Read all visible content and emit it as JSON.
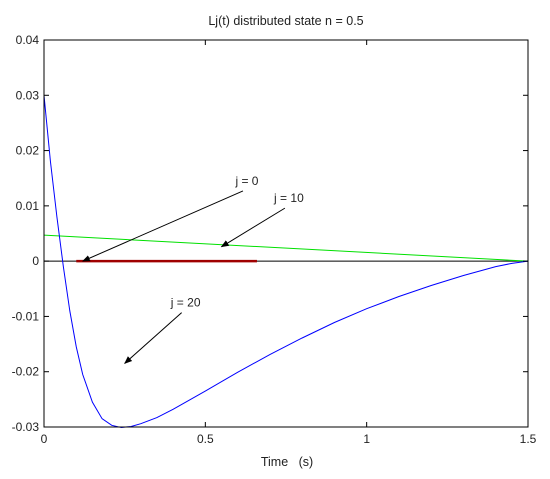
{
  "chart_data": {
    "type": "line",
    "title": "Lj(t) distributed state   n = 0.5",
    "xlabel": "Time   (s)",
    "ylabel": "",
    "xlim": [
      0,
      1.5
    ],
    "ylim": [
      -0.03,
      0.04
    ],
    "xticks": [
      0,
      0.5,
      1,
      1.5
    ],
    "xtick_labels": [
      "0",
      "0.5",
      "1",
      "1.5"
    ],
    "yticks": [
      -0.03,
      -0.02,
      -0.01,
      0,
      0.01,
      0.02,
      0.03,
      0.04
    ],
    "ytick_labels": [
      "-0.03",
      "-0.02",
      "-0.01",
      "0",
      "0.01",
      "0.02",
      "0.03",
      "0.04"
    ],
    "grid": false,
    "legend": "none",
    "series": [
      {
        "color": "#000000",
        "x": [
          0,
          1.5
        ],
        "y": [
          0,
          0
        ]
      },
      {
        "color": "#00e000",
        "x": [
          0,
          1.5
        ],
        "y": [
          0.0047,
          0
        ]
      },
      {
        "color": "#a00000",
        "x": [
          0.1,
          0.66
        ],
        "y": [
          0,
          0
        ]
      },
      {
        "color": "#0000ff",
        "x": [
          0,
          0.02,
          0.04,
          0.06,
          0.08,
          0.1,
          0.12,
          0.15,
          0.18,
          0.21,
          0.24,
          0.27,
          0.3,
          0.35,
          0.4,
          0.5,
          0.6,
          0.7,
          0.8,
          0.9,
          1.0,
          1.1,
          1.2,
          1.3,
          1.4,
          1.45,
          1.5
        ],
        "y": [
          0.03,
          0.018,
          0.008,
          -0.001,
          -0.009,
          -0.0155,
          -0.0205,
          -0.0255,
          -0.0285,
          -0.0297,
          -0.0301,
          -0.0299,
          -0.0294,
          -0.0283,
          -0.0268,
          -0.0235,
          -0.0201,
          -0.0169,
          -0.0139,
          -0.0111,
          -0.0086,
          -0.0064,
          -0.0044,
          -0.0026,
          -0.001,
          -0.0004,
          0
        ]
      }
    ],
    "annotations": [
      {
        "text": "j = 0",
        "ax": 0.12,
        "ay": 0,
        "tx": 0.66,
        "ty": 0.0145
      },
      {
        "text": "j = 10",
        "ax": 0.55,
        "ay": 0.0026,
        "tx": 0.79,
        "ty": 0.0114
      },
      {
        "text": "j = 20",
        "ax": 0.25,
        "ay": -0.0185,
        "tx": 0.47,
        "ty": -0.0075
      }
    ]
  }
}
